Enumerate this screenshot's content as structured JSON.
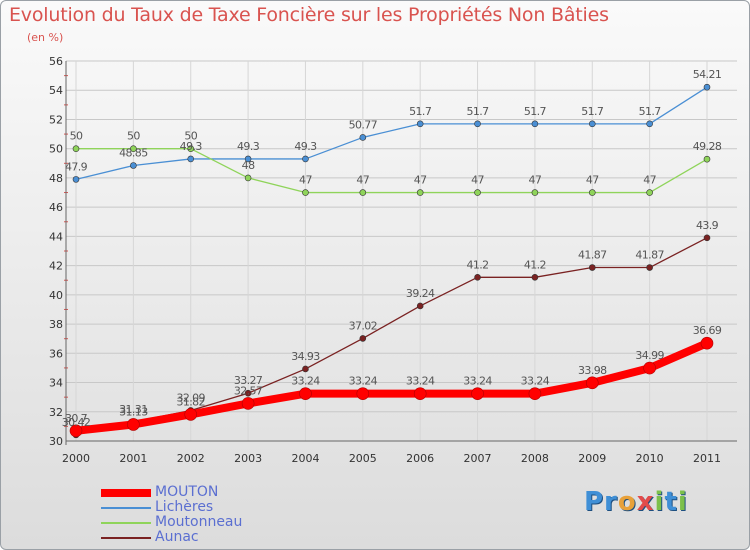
{
  "title": "Evolution du Taux de Taxe Foncière sur les Propriétés Non Bâties",
  "unit_label": "(en %)",
  "logo": "Proxiti",
  "colors": {
    "title": "#d9534f",
    "legend_text": "#5b6fd1"
  },
  "chart_data": {
    "type": "line",
    "title": "Evolution du Taux de Taxe Foncière sur les Propriétés Non Bâties",
    "ylabel": "(en %)",
    "xlabel": "",
    "ylim": [
      30,
      56
    ],
    "yticks": [
      30,
      32,
      34,
      36,
      38,
      40,
      42,
      44,
      46,
      48,
      50,
      52,
      54,
      56
    ],
    "categories": [
      "2000",
      "2001",
      "2002",
      "2003",
      "2004",
      "2005",
      "2006",
      "2007",
      "2008",
      "2009",
      "2010",
      "2011"
    ],
    "grid": true,
    "legend_position": "bottom-left",
    "series": [
      {
        "name": "MOUTON",
        "color": "#ff0000",
        "emphasis": true,
        "values": [
          30.7,
          31.13,
          31.82,
          32.57,
          33.24,
          33.24,
          33.24,
          33.24,
          33.24,
          33.98,
          34.99,
          36.69
        ],
        "labels": [
          "30.7",
          "31.13",
          "31.82",
          "32.57",
          "33.24",
          "33.24",
          "33.24",
          "33.24",
          "33.24",
          "33.98",
          "34.99",
          "36.69"
        ]
      },
      {
        "name": "Lichères",
        "color": "#4a8fd4",
        "values": [
          47.9,
          48.85,
          49.3,
          49.3,
          49.3,
          50.77,
          51.7,
          51.7,
          51.7,
          51.7,
          51.7,
          54.21
        ],
        "labels": [
          "47.9",
          "48.85",
          "49.3",
          "49.3",
          "49.3",
          "50.77",
          "51.7",
          "51.7",
          "51.7",
          "51.7",
          "51.7",
          "54.21"
        ]
      },
      {
        "name": "Moutonneau",
        "color": "#8fd45a",
        "values": [
          50,
          50,
          50,
          48,
          47,
          47,
          47,
          47,
          47,
          47,
          47,
          49.28
        ],
        "labels": [
          "50",
          "50",
          "50",
          "48",
          "47",
          "47",
          "47",
          "47",
          "47",
          "47",
          "47",
          "49.28"
        ]
      },
      {
        "name": "Aunac",
        "color": "#7a2222",
        "values": [
          30.42,
          31.31,
          32.09,
          33.27,
          34.93,
          37.02,
          39.24,
          41.2,
          41.2,
          41.87,
          41.87,
          43.9
        ],
        "labels": [
          "30.42",
          "31.31",
          "32.09",
          "33.27",
          "34.93",
          "37.02",
          "39.24",
          "41.2",
          "41.2",
          "41.87",
          "41.87",
          "43.9"
        ]
      }
    ]
  }
}
